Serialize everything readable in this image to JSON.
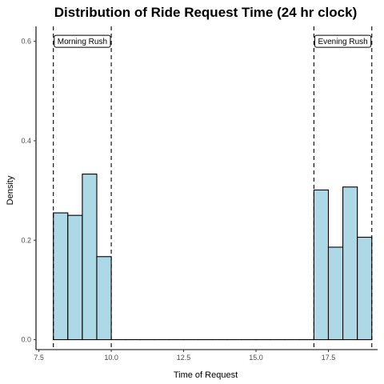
{
  "chart_data": {
    "type": "bar",
    "title": "Distribution of Ride Request Time (24 hr clock)",
    "xlabel": "Time of Request",
    "ylabel": "Density",
    "xlim": [
      7.4,
      19.2
    ],
    "ylim": [
      -0.02,
      0.63
    ],
    "x_ticks": [
      7.5,
      10.0,
      12.5,
      15.0,
      17.5
    ],
    "x_tick_labels": [
      "7.5",
      "10.0",
      "12.5",
      "15.0",
      "17.5"
    ],
    "y_ticks": [
      0.0,
      0.2,
      0.4,
      0.6
    ],
    "y_tick_labels": [
      "0.0",
      "0.2",
      "0.4",
      "0.6"
    ],
    "grid": false,
    "bin_width": 0.5,
    "bins": [
      {
        "x0": 8.0,
        "x1": 8.5,
        "density": 0.255
      },
      {
        "x0": 8.5,
        "x1": 9.0,
        "density": 0.25
      },
      {
        "x0": 9.0,
        "x1": 9.5,
        "density": 0.333
      },
      {
        "x0": 9.5,
        "x1": 10.0,
        "density": 0.167
      },
      {
        "x0": 10.0,
        "x1": 10.5,
        "density": 0.0
      },
      {
        "x0": 10.5,
        "x1": 11.0,
        "density": 0.0
      },
      {
        "x0": 11.0,
        "x1": 11.5,
        "density": 0.0
      },
      {
        "x0": 11.5,
        "x1": 12.0,
        "density": 0.0
      },
      {
        "x0": 12.0,
        "x1": 12.5,
        "density": 0.0
      },
      {
        "x0": 12.5,
        "x1": 13.0,
        "density": 0.0
      },
      {
        "x0": 13.0,
        "x1": 13.5,
        "density": 0.0
      },
      {
        "x0": 13.5,
        "x1": 14.0,
        "density": 0.0
      },
      {
        "x0": 14.0,
        "x1": 14.5,
        "density": 0.0
      },
      {
        "x0": 14.5,
        "x1": 15.0,
        "density": 0.0
      },
      {
        "x0": 15.0,
        "x1": 15.5,
        "density": 0.0
      },
      {
        "x0": 15.5,
        "x1": 16.0,
        "density": 0.0
      },
      {
        "x0": 16.0,
        "x1": 16.5,
        "density": 0.0
      },
      {
        "x0": 16.5,
        "x1": 17.0,
        "density": 0.0
      },
      {
        "x0": 17.0,
        "x1": 17.5,
        "density": 0.301
      },
      {
        "x0": 17.5,
        "x1": 18.0,
        "density": 0.186
      },
      {
        "x0": 18.0,
        "x1": 18.5,
        "density": 0.307
      },
      {
        "x0": 18.5,
        "x1": 19.0,
        "density": 0.206
      }
    ],
    "bar_fill": "#add8e6",
    "bar_stroke": "#000000",
    "reference_lines": [
      {
        "x": 8.0,
        "style": "dashed"
      },
      {
        "x": 10.0,
        "style": "dashed"
      },
      {
        "x": 17.0,
        "style": "dashed"
      },
      {
        "x": 19.0,
        "style": "dashed"
      }
    ],
    "annotations": [
      {
        "text": "Morning Rush",
        "x_center": 9.0,
        "y": 0.6
      },
      {
        "text": "Evening Rush",
        "x_center": 18.0,
        "y": 0.6
      }
    ]
  }
}
